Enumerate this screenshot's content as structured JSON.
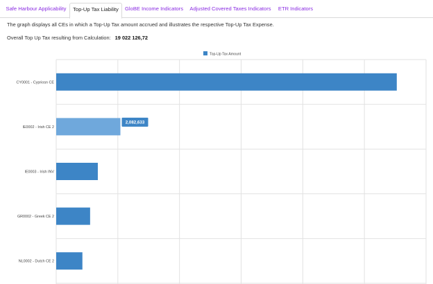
{
  "tabs": [
    {
      "label": "Safe Harbour Applicability",
      "active": false
    },
    {
      "label": "Top-Up Tax Liability",
      "active": true
    },
    {
      "label": "GloBE Income Indicators",
      "active": false
    },
    {
      "label": "Adjusted Covered Taxes Indicators",
      "active": false
    },
    {
      "label": "ETR Indicators",
      "active": false
    }
  ],
  "description": "The graph displays all CEs in which a Top-Up Tax amount accrued and illustrates the respective Top-Up Tax Expense.",
  "overall": {
    "label": "Overall Top Up Tax resulting from Calculation:",
    "value": "19 022 126,72"
  },
  "colors": {
    "bar": "#3d85c6",
    "bar_highlight": "#6fa8dc",
    "tab_link": "#8a2be2",
    "grid": "#e2e2e2"
  },
  "chart_data": {
    "type": "bar",
    "orientation": "horizontal",
    "legend": {
      "position": "top-center",
      "entries": [
        "Top-Up Tax Amount"
      ]
    },
    "series": [
      {
        "name": "Top-Up Tax Amount",
        "values": [
          11050000,
          2082633,
          1350000,
          1100000,
          850000
        ]
      }
    ],
    "categories": [
      "CY0001 - Cypriosn CE",
      "IE0002 - Irish CE 2",
      "IE0003 - Irish INV",
      "GR0002 - Greek CE 2",
      "NL0002 - Dutch CE 2"
    ],
    "highlighted_index": 1,
    "data_labels": [
      {
        "index": 1,
        "text": "2,082,633"
      }
    ],
    "xlim": [
      0,
      12000000
    ],
    "x_gridlines": [
      0,
      2000000,
      4000000,
      6000000,
      8000000,
      10000000,
      12000000
    ],
    "grid": true
  }
}
